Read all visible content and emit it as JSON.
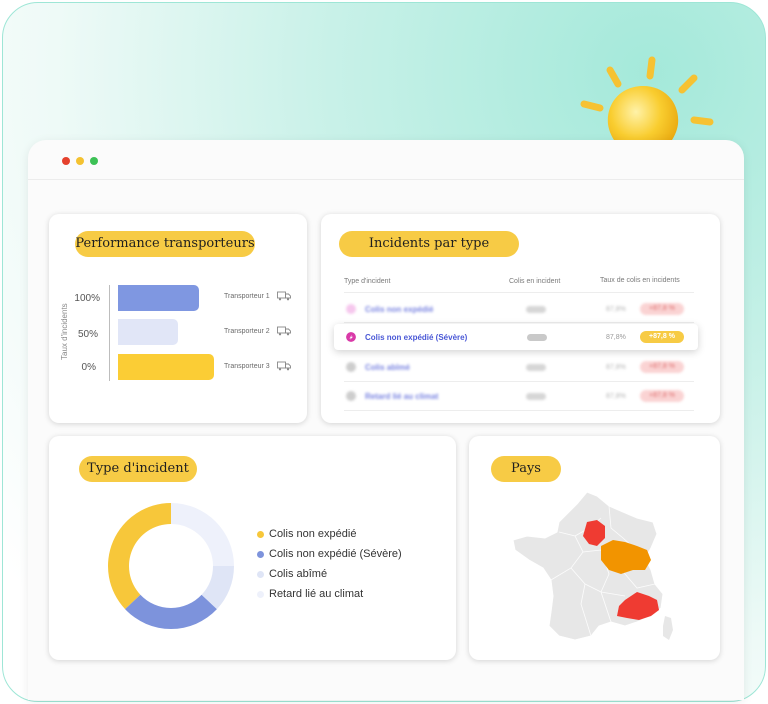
{
  "performance": {
    "title": "Performance transporteurs",
    "axis_label": "Taux d'incidents",
    "bars": [
      {
        "percent_label": "100%",
        "carrier": "Transporteur 1",
        "fill": 0.72,
        "color": "#7f97e1"
      },
      {
        "percent_label": "50%",
        "carrier": "Transporteur 2",
        "fill": 0.54,
        "color": "#e1e6f7"
      },
      {
        "percent_label": "0%",
        "carrier": "Transporteur 3",
        "fill": 0.86,
        "color": "#fbcd35"
      }
    ]
  },
  "incidents": {
    "title": "Incidents par type",
    "columns": [
      "Type d'incident",
      "Colis en incident",
      "Taux de colis en incidents"
    ],
    "rows": [
      {
        "label": "Colis non expédié",
        "rate": "87,8%",
        "badge": "+87,8 %",
        "icon_color": "#f3b6e8",
        "highlight": false
      },
      {
        "label": "Colis non expédié (Sévère)",
        "rate": "87,8%",
        "badge": "+87,8 %",
        "icon_color": "#d93aa8",
        "highlight": true
      },
      {
        "label": "Colis abîmé",
        "rate": "87,8%",
        "badge": "+87,8 %",
        "icon_color": "#bdbdbd",
        "highlight": false
      },
      {
        "label": "Retard lié au climat",
        "rate": "87,8%",
        "badge": "+87,8 %",
        "icon_color": "#bdbdbd",
        "highlight": false
      }
    ]
  },
  "incident_type": {
    "title": "Type d'incident",
    "legend": [
      {
        "label": "Colis non expédié",
        "color": "#f7c73a"
      },
      {
        "label": "Colis non expédié (Sévère)",
        "color": "#7d93dc"
      },
      {
        "label": "Colis abîmé",
        "color": "#dfe5f6"
      },
      {
        "label": "Retard lié au climat",
        "color": "#eef1fb"
      }
    ]
  },
  "chart_data": {
    "type": "pie",
    "title": "Type d'incident",
    "categories": [
      "Colis non expédié",
      "Colis non expédié (Sévère)",
      "Colis abîmé",
      "Retard lié au climat"
    ],
    "values": [
      37,
      26,
      12,
      25
    ],
    "colors": [
      "#f7c73a",
      "#7d93dc",
      "#dfe5f6",
      "#eef1fb"
    ]
  },
  "country": {
    "title": "Pays",
    "colors": {
      "base": "#e7e7e7",
      "red": "#ef3b32",
      "orange": "#f29400"
    }
  }
}
